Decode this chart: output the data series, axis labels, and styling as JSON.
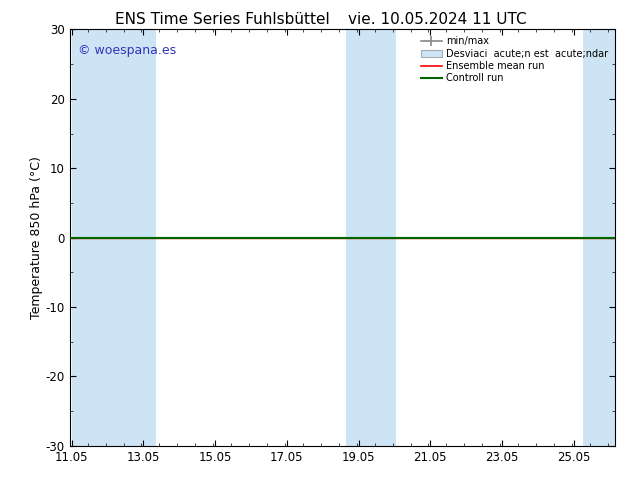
{
  "title_left": "ENS Time Series Fuhlsbüttel",
  "title_right": "vie. 10.05.2024 11 UTC",
  "ylabel": "Temperature 850 hPa (°C)",
  "xlim_left": 11.0,
  "xlim_right": 26.2,
  "ylim_bottom": -30,
  "ylim_top": 30,
  "yticks": [
    -30,
    -20,
    -10,
    0,
    10,
    20,
    30
  ],
  "xtick_labels": [
    "11.05",
    "13.05",
    "15.05",
    "17.05",
    "19.05",
    "21.05",
    "23.05",
    "25.05"
  ],
  "xtick_positions": [
    11.05,
    13.05,
    15.05,
    17.05,
    19.05,
    21.05,
    23.05,
    25.05
  ],
  "watermark": "© woespana.es",
  "watermark_color": "#3333bb",
  "background_color": "#ffffff",
  "plot_bg_color": "#ffffff",
  "shade_color": "#cde4f5",
  "shade_alpha": 1.0,
  "shaded_bands": [
    [
      11.05,
      11.6
    ],
    [
      11.6,
      13.4
    ],
    [
      18.7,
      19.3
    ],
    [
      19.3,
      20.1
    ],
    [
      25.3,
      26.2
    ]
  ],
  "zero_line_color": "#000000",
  "ensemble_mean_color": "#ff0000",
  "control_run_color": "#006400",
  "flat_value": 0.0,
  "legend_label_minmax": "min/max",
  "legend_label_desv": "Desviaci  acute;n est  acute;ndar",
  "legend_label_ens": "Ensemble mean run",
  "legend_label_ctrl": "Controll run",
  "title_fontsize": 11,
  "axis_label_fontsize": 9,
  "tick_fontsize": 8.5,
  "watermark_fontsize": 9
}
